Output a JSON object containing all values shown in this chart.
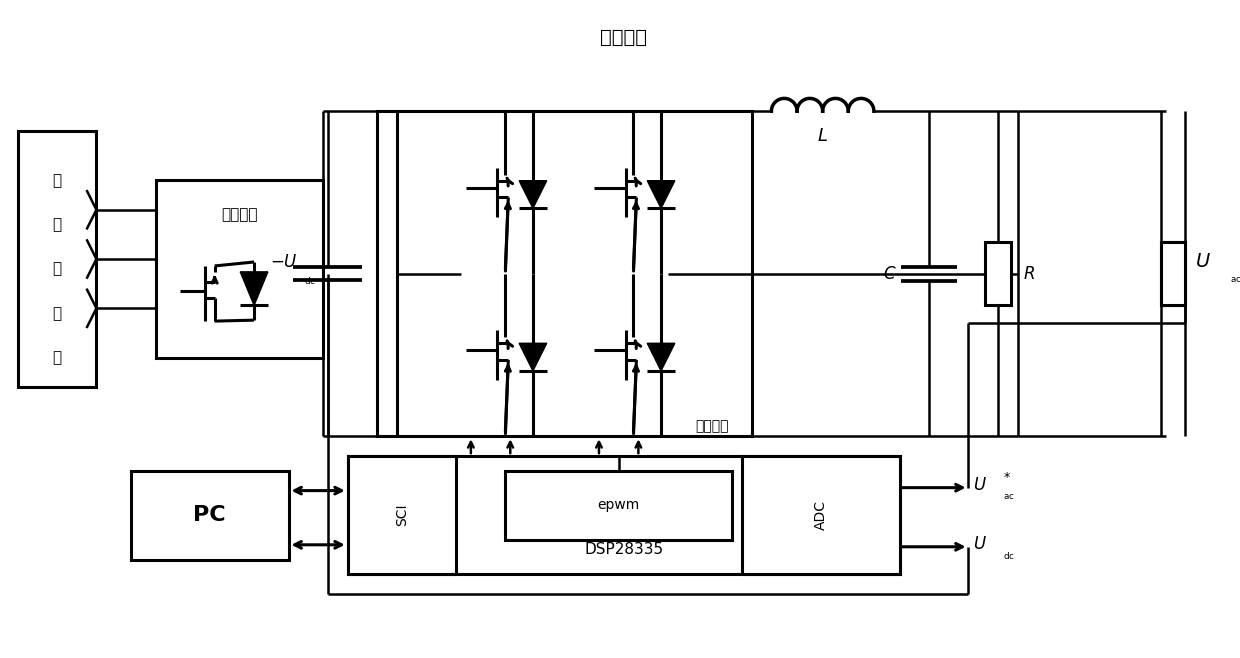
{
  "title": "逆变电路",
  "label_gen": "波浪发电机",
  "label_rect": "整流电路",
  "label_gate": "门控信号",
  "label_dsp": "DSP28335",
  "label_sci": "SCI",
  "label_epwm": "epwm",
  "label_adc": "ADC",
  "label_pc": "PC",
  "bg_color": "#ffffff",
  "lw": 1.8,
  "lw2": 2.2,
  "figsize": [
    12.4,
    6.58
  ],
  "dpi": 100
}
